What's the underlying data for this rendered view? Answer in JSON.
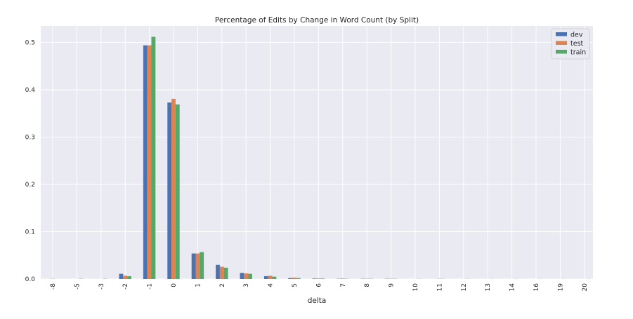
{
  "chart_data": {
    "type": "bar",
    "title": "Percentage of Edits by Change in Word Count (by Split)",
    "xlabel": "delta",
    "ylabel": "",
    "categories": [
      "-8",
      "-5",
      "-3",
      "-2",
      "-1",
      "0",
      "1",
      "2",
      "3",
      "4",
      "5",
      "6",
      "7",
      "8",
      "9",
      "10",
      "11",
      "12",
      "13",
      "14",
      "16",
      "19",
      "20"
    ],
    "yticks": [
      "0.0",
      "0.1",
      "0.2",
      "0.3",
      "0.4",
      "0.5"
    ],
    "ylim": [
      0,
      0.535
    ],
    "grid": true,
    "legend_position": "top-right",
    "series": [
      {
        "name": "dev",
        "color": "#4c72b0",
        "values": [
          0,
          0,
          0,
          0.011,
          0.494,
          0.373,
          0.054,
          0.03,
          0.013,
          0.006,
          0.002,
          0.001,
          0.0005,
          0.0005,
          0.0005,
          0,
          0,
          0,
          0,
          0,
          0,
          0,
          0
        ]
      },
      {
        "name": "test",
        "color": "#dd8452",
        "values": [
          0.0005,
          0,
          0,
          0.007,
          0.494,
          0.381,
          0.054,
          0.026,
          0.012,
          0.007,
          0.003,
          0.001,
          0.001,
          0.0005,
          0.0005,
          0,
          0.0005,
          0,
          0,
          0,
          0,
          0,
          0
        ]
      },
      {
        "name": "train",
        "color": "#55a868",
        "values": [
          0,
          0.0005,
          0.0005,
          0.006,
          0.512,
          0.369,
          0.057,
          0.024,
          0.011,
          0.005,
          0.002,
          0.001,
          0.0005,
          0.0005,
          0.0005,
          0.0003,
          0.0003,
          0.0003,
          0.0002,
          0.0002,
          0.0002,
          0.0002,
          0.0002
        ]
      }
    ]
  }
}
